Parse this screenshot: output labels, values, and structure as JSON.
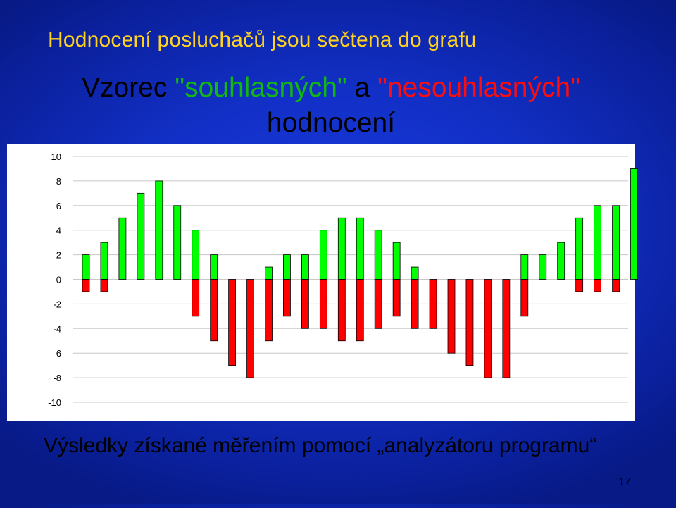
{
  "slide": {
    "title": "Hodnocení posluchačů jsou sečtena do grafu",
    "caption": "Výsledky získané měřením pomocí „analyzátoru programu“",
    "page_number": "17"
  },
  "chart_title": {
    "part1": "Vzorec ",
    "part2": "\"souhlasných\"",
    "part3": " a ",
    "part4": "\"nesouhlasných\"",
    "part5": "hodnocení"
  },
  "colors": {
    "positive": "#00ff00",
    "negative": "#ff0000",
    "background": "#1230c6",
    "panel": "#ffffff",
    "title": "#ffd21f"
  },
  "chart_data": {
    "type": "bar",
    "ylim": [
      -10,
      10
    ],
    "yticks": [
      10,
      8,
      6,
      4,
      2,
      0,
      -2,
      -4,
      -6,
      -8,
      -10
    ],
    "grid": true,
    "series": [
      {
        "values": [
          2,
          3,
          5,
          7,
          8,
          6,
          4,
          2,
          0,
          0,
          1,
          2,
          2,
          4,
          5,
          5,
          4,
          3,
          1,
          0,
          0,
          0,
          0,
          0,
          2,
          2,
          3,
          5,
          6,
          6,
          9
        ]
      },
      {
        "values": [
          -1,
          -1,
          0,
          0,
          0,
          0,
          -3,
          -5,
          -7,
          -8,
          -5,
          -3,
          -4,
          -4,
          -5,
          -5,
          -4,
          -3,
          -4,
          -4,
          -6,
          -7,
          -8,
          -8,
          -3,
          0,
          0,
          -1,
          -1,
          -1,
          0
        ]
      }
    ]
  }
}
